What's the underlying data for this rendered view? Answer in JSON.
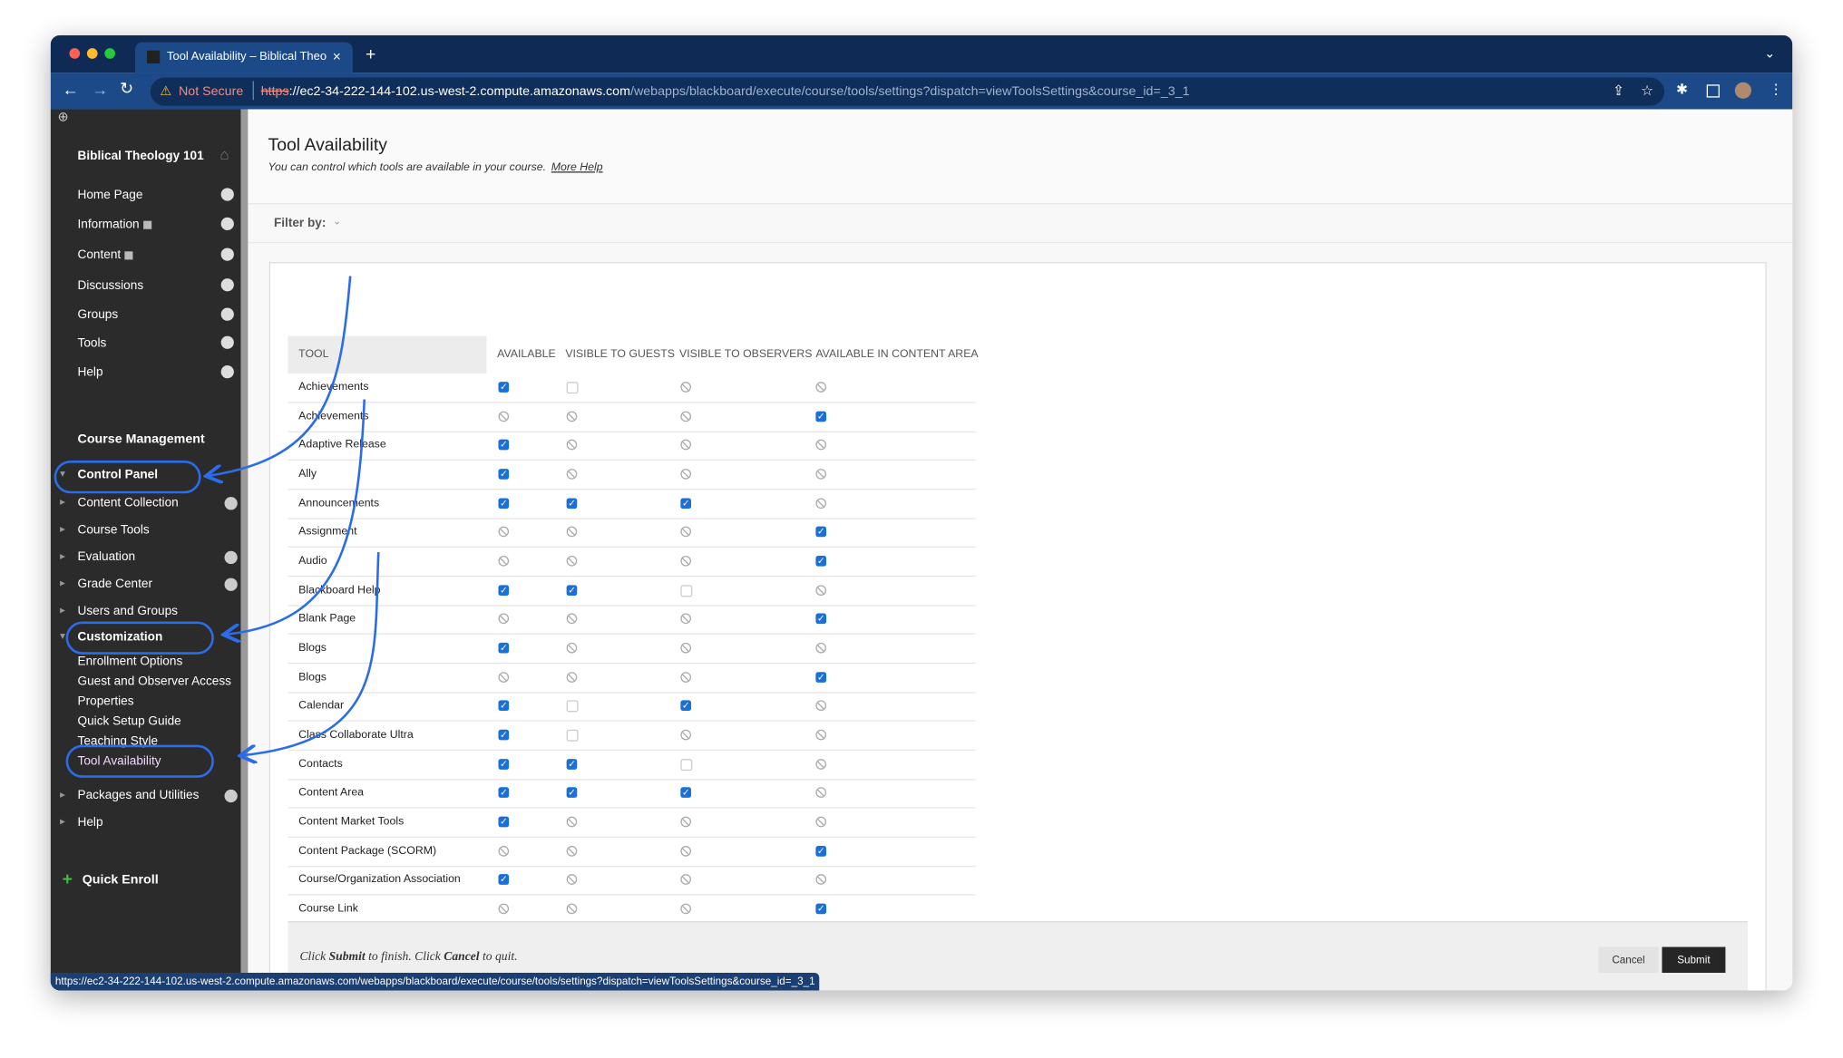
{
  "browser": {
    "tab_title": "Tool Availability – Biblical Theo",
    "security": "Not Secure",
    "url_scheme": "https",
    "url_host": "://ec2-34-222-144-102.us-west-2.compute.amazonaws.com",
    "url_path": "/webapps/blackboard/execute/course/tools/settings?dispatch=viewToolsSettings&course_id=_3_1",
    "status_url": "https://ec2-34-222-144-102.us-west-2.compute.amazonaws.com/webapps/blackboard/execute/course/tools/settings?dispatch=viewToolsSettings&course_id=_3_1"
  },
  "sidebar": {
    "course": "Biblical Theology 101",
    "menu": [
      {
        "label": "Home Page"
      },
      {
        "label": "Information",
        "icon": true
      },
      {
        "label": "Content",
        "icon": true
      },
      {
        "label": "Discussions"
      },
      {
        "label": "Groups"
      },
      {
        "label": "Tools"
      },
      {
        "label": "Help"
      }
    ],
    "management_title": "Course Management",
    "management": [
      {
        "label": "Control Panel",
        "kind": "open"
      },
      {
        "label": "Content Collection",
        "kind": "closed",
        "go": true
      },
      {
        "label": "Course Tools",
        "kind": "closed"
      },
      {
        "label": "Evaluation",
        "kind": "closed",
        "go": true
      },
      {
        "label": "Grade Center",
        "kind": "closed",
        "go": true
      },
      {
        "label": "Users and Groups",
        "kind": "closed"
      },
      {
        "label": "Customization",
        "kind": "open"
      },
      {
        "label": "Enrollment Options",
        "kind": "sub"
      },
      {
        "label": "Guest and Observer Access",
        "kind": "sub"
      },
      {
        "label": "Properties",
        "kind": "sub"
      },
      {
        "label": "Quick Setup Guide",
        "kind": "sub"
      },
      {
        "label": "Teaching Style",
        "kind": "sub"
      },
      {
        "label": "Tool Availability",
        "kind": "current"
      },
      {
        "label": "Packages and Utilities",
        "kind": "closed",
        "go": true
      },
      {
        "label": "Help",
        "kind": "closed"
      }
    ],
    "quick_enroll": "Quick Enroll"
  },
  "page": {
    "title": "Tool Availability",
    "description": "You can control which tools are available in your course.",
    "help_link": "More Help",
    "filter": "Filter by:"
  },
  "table": {
    "columns": [
      "TOOL",
      "AVAILABLE",
      "VISIBLE TO GUESTS",
      "VISIBLE TO OBSERVERS",
      "AVAILABLE IN CONTENT AREA"
    ],
    "rows": [
      [
        "Achievements",
        "checked",
        "unchecked",
        "none",
        "none"
      ],
      [
        "Achievements",
        "none",
        "none",
        "none",
        "checked"
      ],
      [
        "Adaptive Release",
        "checked",
        "none",
        "none",
        "none"
      ],
      [
        "Ally",
        "checked",
        "none",
        "none",
        "none"
      ],
      [
        "Announcements",
        "checked",
        "checked",
        "checked",
        "none"
      ],
      [
        "Assignment",
        "none",
        "none",
        "none",
        "checked"
      ],
      [
        "Audio",
        "none",
        "none",
        "none",
        "checked"
      ],
      [
        "Blackboard Help",
        "checked",
        "checked",
        "unchecked",
        "none"
      ],
      [
        "Blank Page",
        "none",
        "none",
        "none",
        "checked"
      ],
      [
        "Blogs",
        "checked",
        "none",
        "none",
        "none"
      ],
      [
        "Blogs",
        "none",
        "none",
        "none",
        "checked"
      ],
      [
        "Calendar",
        "checked",
        "unchecked",
        "checked",
        "none"
      ],
      [
        "Class Collaborate Ultra",
        "checked",
        "unchecked",
        "none",
        "none"
      ],
      [
        "Contacts",
        "checked",
        "checked",
        "unchecked",
        "none"
      ],
      [
        "Content Area",
        "checked",
        "checked",
        "checked",
        "none"
      ],
      [
        "Content Market Tools",
        "checked",
        "none",
        "none",
        "none"
      ],
      [
        "Content Package (SCORM)",
        "none",
        "none",
        "none",
        "checked"
      ],
      [
        "Course/Organization Association",
        "checked",
        "none",
        "none",
        "none"
      ],
      [
        "Course Link",
        "none",
        "none",
        "none",
        "checked"
      ]
    ]
  },
  "footer": {
    "text": [
      "Click ",
      "Submit",
      " to finish. Click ",
      "Cancel",
      " to quit."
    ],
    "cancel": "Cancel",
    "submit": "Submit"
  }
}
